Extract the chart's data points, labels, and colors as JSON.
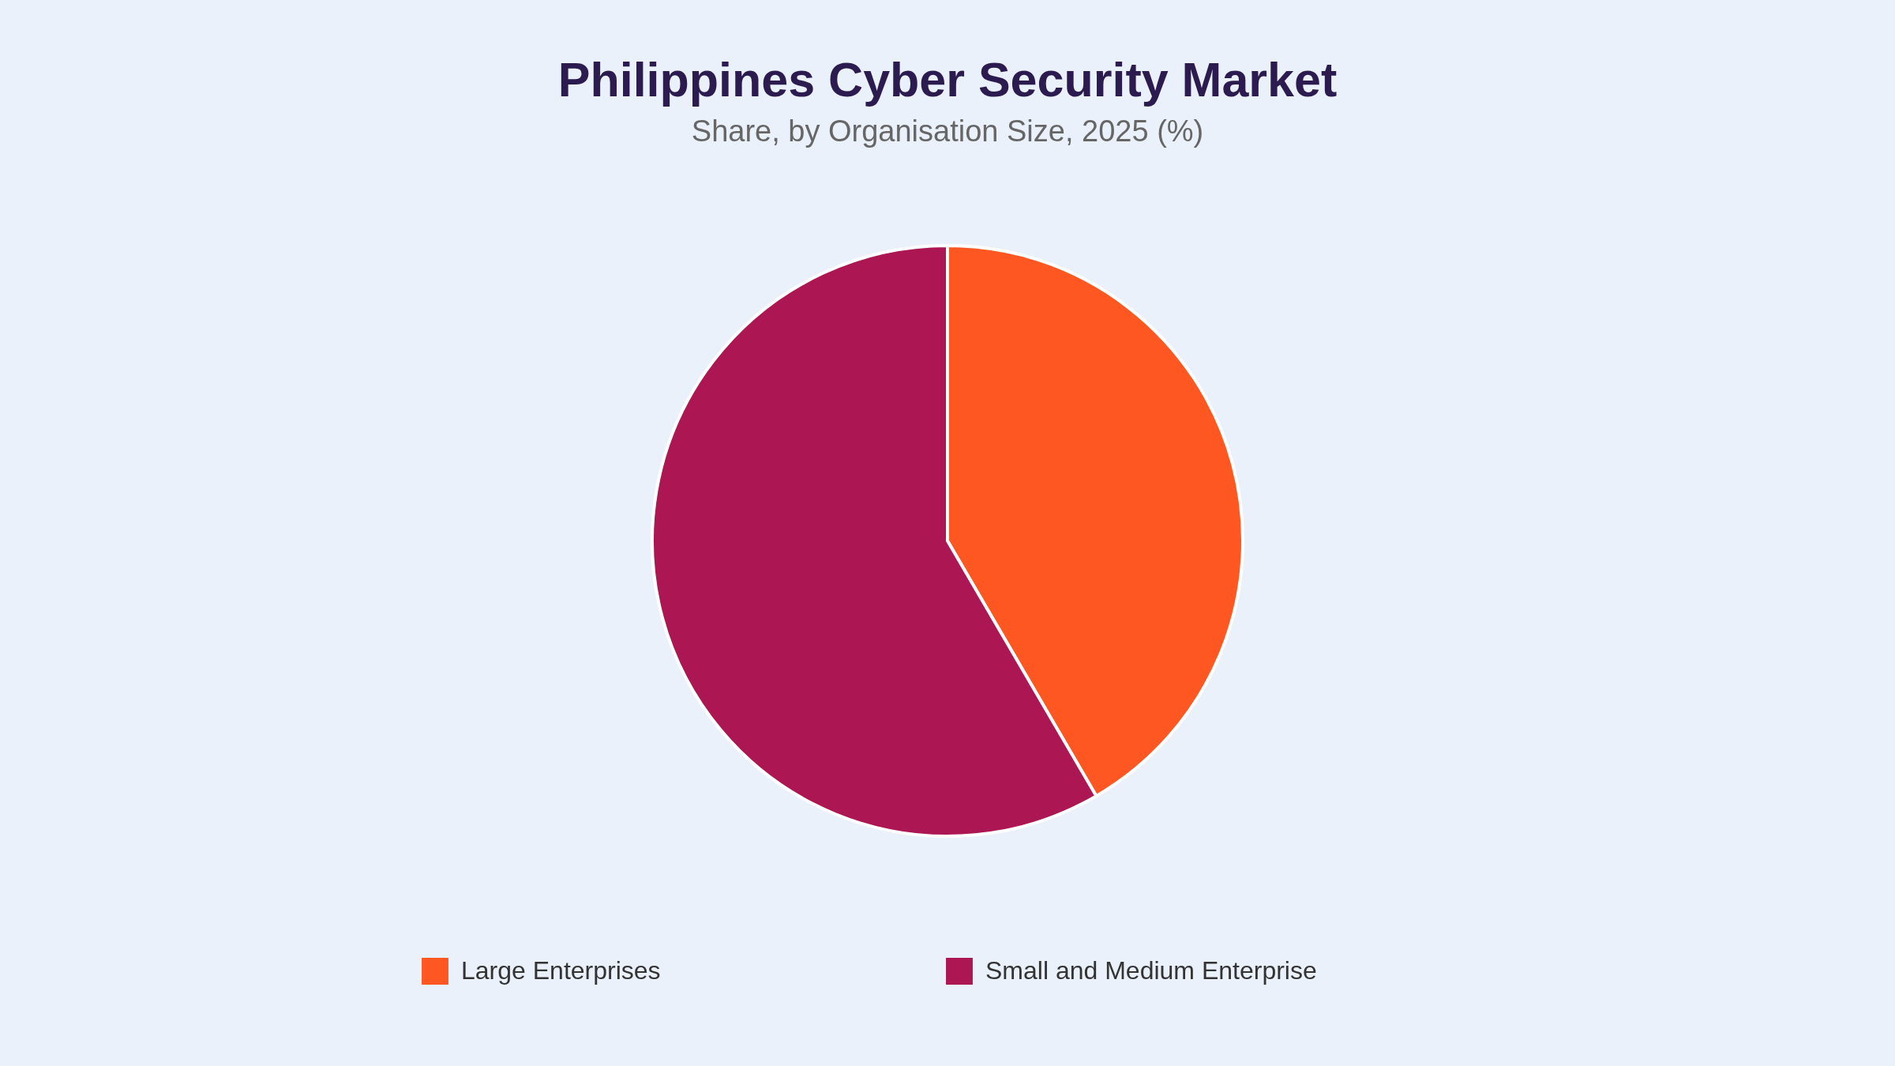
{
  "chart_data": {
    "type": "pie",
    "title": "Philippines Cyber Security Market",
    "subtitle": "Share, by Organisation Size, 2025 (%)",
    "categories": [
      "Large Enterprises",
      "Small and Medium Enterprise"
    ],
    "values": [
      41.6,
      58.4
    ],
    "colors": [
      "#ff5722",
      "#ab1653"
    ],
    "legend": "bottom"
  }
}
